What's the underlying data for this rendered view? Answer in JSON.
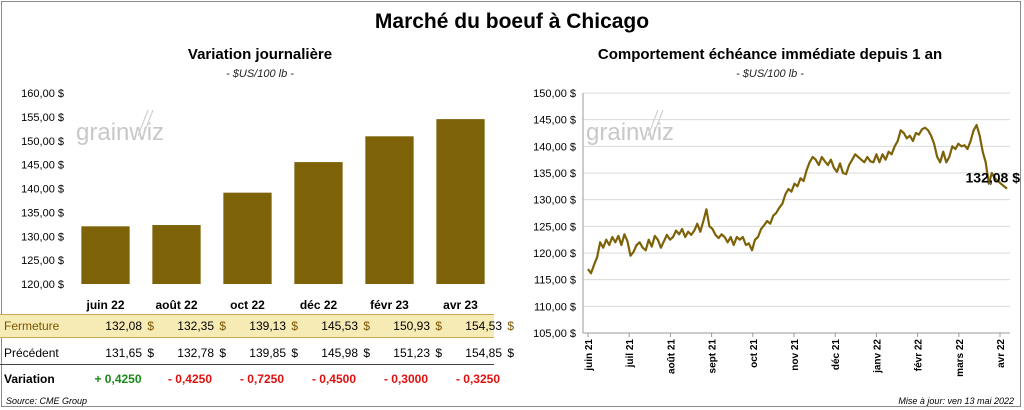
{
  "title": "Marché du boeuf à Chicago",
  "left": {
    "subtitle": "Variation  journalière",
    "unit": "- $US/100 lb -"
  },
  "right": {
    "subtitle": "Comportement  échéance immédiate depuis 1 an",
    "unit": "- $US/100 lb -",
    "last_label": "132,08 $"
  },
  "watermark": "grainwiz",
  "table": {
    "rows": [
      {
        "label": "Fermeture",
        "values": [
          "132,08",
          "132,35",
          "139,13",
          "145,53",
          "150,93",
          "154,53"
        ]
      },
      {
        "label": "Précédent",
        "values": [
          "131,65",
          "132,78",
          "139,85",
          "145,98",
          "151,23",
          "154,85"
        ]
      }
    ],
    "currency": "$",
    "variation": {
      "label": "Variation",
      "values": [
        "+ 0,4250",
        "- 0,4250",
        "- 0,7250",
        "- 0,4500",
        "- 0,3000",
        "- 0,3250"
      ]
    }
  },
  "source": "Source: CME Group",
  "update": "Mise à jour: ven 13 mai 2022",
  "colors": {
    "bar": "#7d6208",
    "line": "#7d6208",
    "grid": "#d9d9d9",
    "highlight": "#f7ebb5",
    "positive": "#1a8a1a",
    "negative": "#e01010"
  },
  "chart_data": [
    {
      "type": "bar",
      "categories": [
        "juin 22",
        "août 22",
        "oct 22",
        "déc 22",
        "févr 23",
        "avr 23"
      ],
      "values": [
        132.08,
        132.35,
        139.13,
        145.53,
        150.93,
        154.53
      ],
      "ylim": [
        120,
        160
      ],
      "yticks": [
        "120,00 $",
        "125,00 $",
        "130,00 $",
        "135,00 $",
        "140,00 $",
        "145,00 $",
        "150,00 $",
        "155,00 $",
        "160,00 $"
      ],
      "grid": false
    },
    {
      "type": "line",
      "x_ticks": [
        "juin 21",
        "juil 21",
        "août 21",
        "sept 21",
        "oct 21",
        "nov 21",
        "déc 21",
        "janv 22",
        "févr 22",
        "mars 22",
        "avr 22"
      ],
      "ylim": [
        105,
        150
      ],
      "yticks": [
        "105,00 $",
        "110,00 $",
        "115,00 $",
        "120,00 $",
        "125,00 $",
        "130,00 $",
        "135,00 $",
        "140,00 $",
        "145,00 $",
        "150,00 $"
      ],
      "grid": true,
      "values": [
        117.0,
        116.2,
        117.8,
        119.2,
        122.0,
        121.0,
        122.5,
        121.5,
        123.0,
        122.0,
        123.2,
        121.5,
        123.5,
        122.2,
        119.5,
        120.2,
        121.5,
        122.0,
        121.0,
        120.5,
        122.5,
        121.2,
        123.2,
        122.5,
        121.0,
        122.2,
        123.4,
        122.5,
        123.0,
        124.2,
        123.5,
        124.5,
        123.0,
        124.0,
        123.4,
        124.2,
        125.5,
        124.0,
        126.0,
        128.2,
        125.0,
        124.5,
        123.4,
        122.8,
        123.5,
        123.0,
        122.0,
        123.0,
        121.5,
        123.0,
        122.5,
        123.0,
        121.5,
        121.8,
        120.5,
        122.5,
        123.0,
        124.5,
        125.2,
        126.0,
        125.5,
        127.0,
        127.5,
        128.5,
        129.2,
        131.0,
        132.0,
        131.5,
        133.0,
        132.5,
        134.0,
        133.5,
        135.5,
        137.0,
        138.0,
        137.5,
        136.5,
        138.0,
        137.2,
        136.5,
        137.5,
        136.0,
        135.2,
        136.8,
        135.0,
        134.8,
        136.5,
        137.5,
        138.5,
        138.0,
        137.5,
        137.0,
        138.0,
        137.2,
        137.0,
        138.5,
        137.0,
        138.5,
        137.5,
        139.0,
        138.5,
        140.0,
        141.0,
        143.0,
        142.5,
        141.5,
        142.0,
        141.0,
        142.5,
        142.2,
        143.2,
        143.5,
        143.0,
        142.0,
        140.5,
        138.0,
        137.0,
        139.0,
        137.0,
        138.0,
        140.0,
        139.5,
        140.5,
        140.0,
        140.2,
        139.5,
        141.0,
        143.0,
        144.0,
        142.0,
        139.0,
        137.0,
        133.0,
        135.0,
        134.0,
        133.5,
        133.0,
        132.5,
        132.08
      ]
    }
  ]
}
